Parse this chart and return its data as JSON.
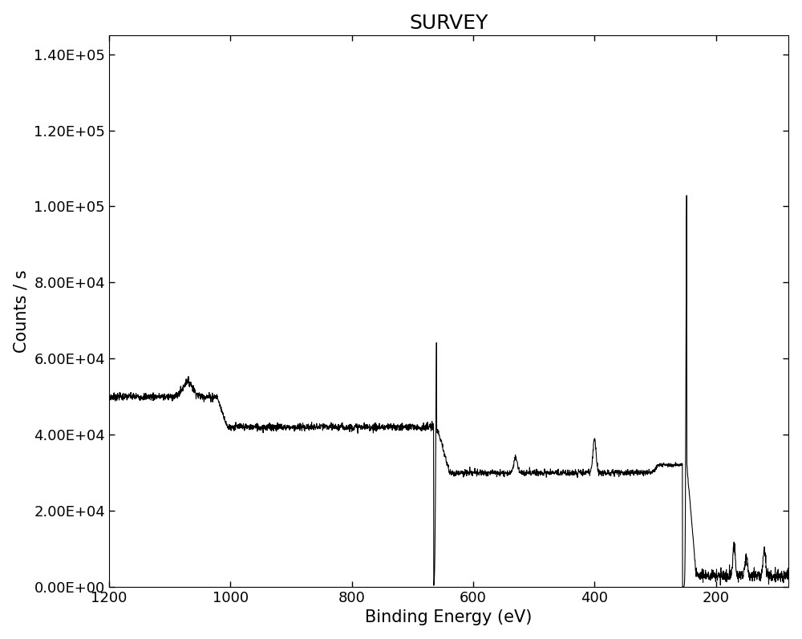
{
  "title": "SURVEY",
  "xlabel": "Binding Energy (eV)",
  "ylabel": "Counts / s",
  "xlim": [
    1200,
    80
  ],
  "ylim": [
    0,
    145000
  ],
  "yticks": [
    0,
    20000,
    40000,
    60000,
    80000,
    100000,
    120000,
    140000
  ],
  "ytick_labels": [
    "0.00E+00",
    "2.00E+04",
    "4.00E+04",
    "6.00E+04",
    "8.00E+04",
    "1.00E+05",
    "1.20E+05",
    "1.40E+05"
  ],
  "xticks": [
    1200,
    1000,
    800,
    600,
    400,
    200
  ],
  "line_color": "#000000",
  "bg_color": "#ffffff",
  "title_fontsize": 18,
  "label_fontsize": 15,
  "tick_fontsize": 13,
  "line_width": 0.8
}
